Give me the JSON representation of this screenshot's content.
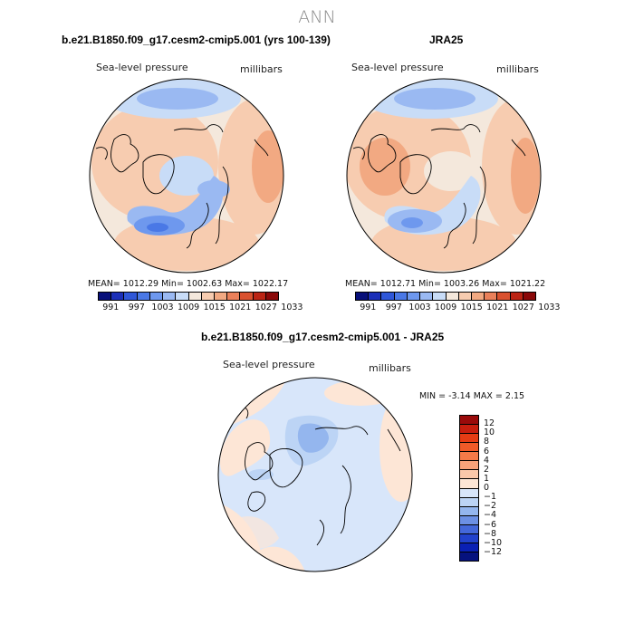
{
  "title": "ANN",
  "panels": [
    {
      "title": "b.e21.B1850.f09_g17.cesm2-cmip5.001 (yrs 100-139)",
      "variable": "Sea-level pressure",
      "units": "millibars",
      "stats": "MEAN= 1012.29   Min= 1002.63   Max= 1022.17"
    },
    {
      "title": "JRA25",
      "variable": "Sea-level pressure",
      "units": "millibars",
      "stats": "MEAN= 1012.71   Min= 1003.26   Max= 1021.22"
    },
    {
      "title": "b.e21.B1850.f09_g17.cesm2-cmip5.001 - JRA25",
      "variable": "Sea-level pressure",
      "units": "millibars",
      "stats": "MIN =   -3.14  MAX =    2.15"
    }
  ],
  "colorbar_abs": {
    "colors": [
      "#08107a",
      "#1b2fb8",
      "#2f57d8",
      "#4a78e6",
      "#6e98ee",
      "#9ab9f2",
      "#c8dcf7",
      "#f4e8dc",
      "#f7ccb0",
      "#f2a982",
      "#ea805a",
      "#d9512f",
      "#bb2414",
      "#8a0808"
    ],
    "tick_labels": [
      "991",
      "997",
      "1003",
      "1009",
      "1015",
      "1021",
      "1027",
      "1033"
    ]
  },
  "colorbar_diff": {
    "colors": [
      "#9a0a0a",
      "#c81e0e",
      "#e63c14",
      "#f05a28",
      "#f47a48",
      "#f7a27a",
      "#fac8aa",
      "#fde6d6",
      "#d8e6fa",
      "#bcd4f5",
      "#94b6ee",
      "#6c90e4",
      "#4468da",
      "#2242cc",
      "#0a20b4",
      "#06127e"
    ],
    "tick_labels": [
      "12",
      "10",
      "8",
      "6",
      "4",
      "2",
      "1",
      "0",
      "−1",
      "−2",
      "−4",
      "−6",
      "−8",
      "−10",
      "−12"
    ]
  }
}
